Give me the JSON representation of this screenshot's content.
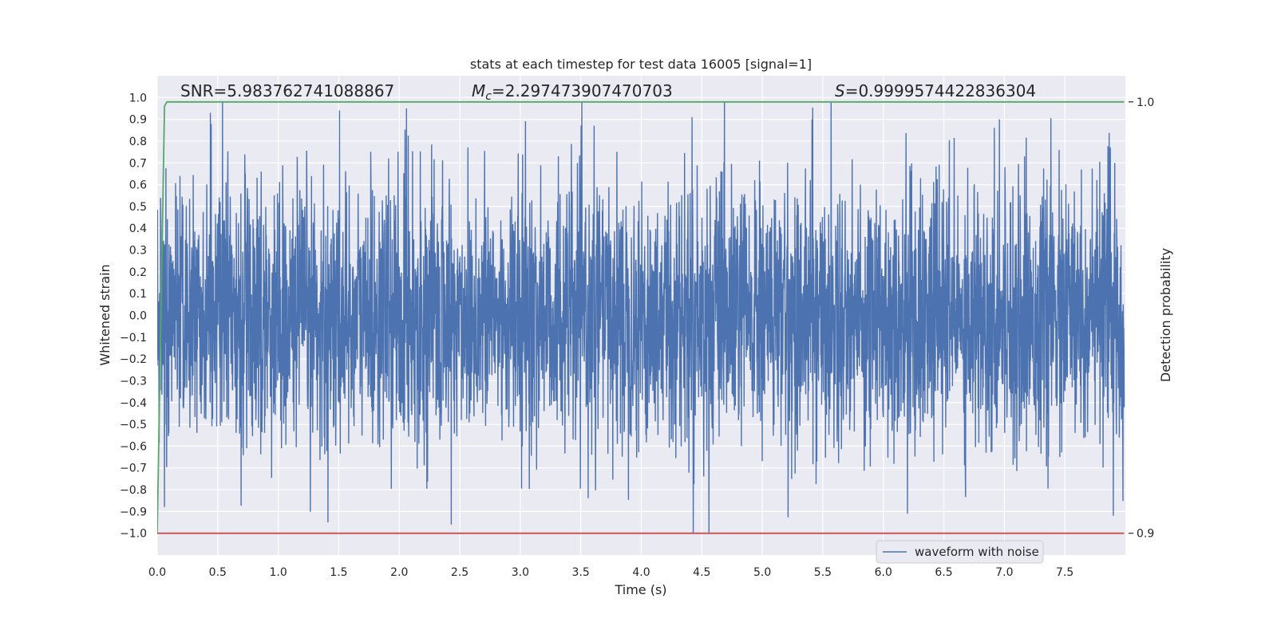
{
  "chart_data": {
    "type": "line",
    "title": "stats at each timestep for test data 16005 [signal=1]",
    "xlabel": "Time (s)",
    "ylabel_left": "Whitened strain",
    "ylabel_right": "Detection probability",
    "xlim": [
      0.0,
      8.0
    ],
    "ylim_left": [
      -1.1,
      1.1
    ],
    "ylim_right": [
      0.9,
      1.0
    ],
    "x_ticks": [
      0.0,
      0.5,
      1.0,
      1.5,
      2.0,
      2.5,
      3.0,
      3.5,
      4.0,
      4.5,
      5.0,
      5.5,
      6.0,
      6.5,
      7.0,
      7.5
    ],
    "x_tick_labels": [
      "0.0",
      "0.5",
      "1.0",
      "1.5",
      "2.0",
      "2.5",
      "3.0",
      "3.5",
      "4.0",
      "4.5",
      "5.0",
      "5.5",
      "6.0",
      "6.5",
      "7.0",
      "7.5"
    ],
    "y_left_ticks": [
      1.0,
      0.9,
      0.8,
      0.7,
      0.6,
      0.5,
      0.4,
      0.3,
      0.2,
      0.1,
      0.0,
      -0.1,
      -0.2,
      -0.3,
      -0.4,
      -0.5,
      -0.6,
      -0.7,
      -0.8,
      -0.9,
      -1.0
    ],
    "y_left_tick_labels": [
      "1.0",
      "0.9",
      "0.8",
      "0.7",
      "0.6",
      "0.5",
      "0.4",
      "0.3",
      "0.2",
      "0.1",
      "0.0",
      "−0.1",
      "−0.2",
      "−0.3",
      "−0.4",
      "−0.5",
      "−0.6",
      "−0.7",
      "−0.8",
      "−0.9",
      "−1.0"
    ],
    "y_right_ticks": [
      1.0,
      0.9
    ],
    "y_right_tick_labels": [
      "1.0",
      "0.9"
    ],
    "grid": true,
    "legend_position": "lower-right",
    "background": "#eaeaf2",
    "annotations": {
      "snr": "SNR=5.983762741088867",
      "mc_symbol": "M",
      "mc_subscript": "c",
      "mc_value": "=2.297473907470703",
      "s_symbol": "S",
      "s_value": "=0.9999574422836304"
    },
    "series": [
      {
        "name": "waveform with noise",
        "axis": "left",
        "color": "#4c72b0",
        "kind": "noise",
        "x_range": [
          0.0,
          7.99
        ],
        "std": 0.3,
        "min": -1.0,
        "max": 0.98,
        "spikes": [
          {
            "x": 0.54,
            "y": 0.98
          },
          {
            "x": 0.44,
            "y": 0.93
          },
          {
            "x": 2.06,
            "y": 0.95
          },
          {
            "x": 4.42,
            "y": 0.91
          },
          {
            "x": 5.41,
            "y": 0.9
          },
          {
            "x": 6.96,
            "y": 0.9
          },
          {
            "x": 4.56,
            "y": -1.0
          },
          {
            "x": 1.41,
            "y": -0.95
          },
          {
            "x": 2.43,
            "y": -0.96
          },
          {
            "x": 6.2,
            "y": -0.91
          },
          {
            "x": 0.06,
            "y": -0.88
          },
          {
            "x": 7.9,
            "y": -0.92
          }
        ]
      },
      {
        "name": "",
        "axis": "right",
        "color": "#55a868",
        "x": [
          0.0,
          0.06,
          0.08,
          7.99
        ],
        "y": [
          0.9,
          0.999,
          1.0,
          1.0
        ]
      },
      {
        "name": "",
        "axis": "right",
        "color": "#c44e52",
        "x": [
          0.0,
          7.99
        ],
        "y": [
          0.9,
          0.9
        ]
      }
    ]
  }
}
